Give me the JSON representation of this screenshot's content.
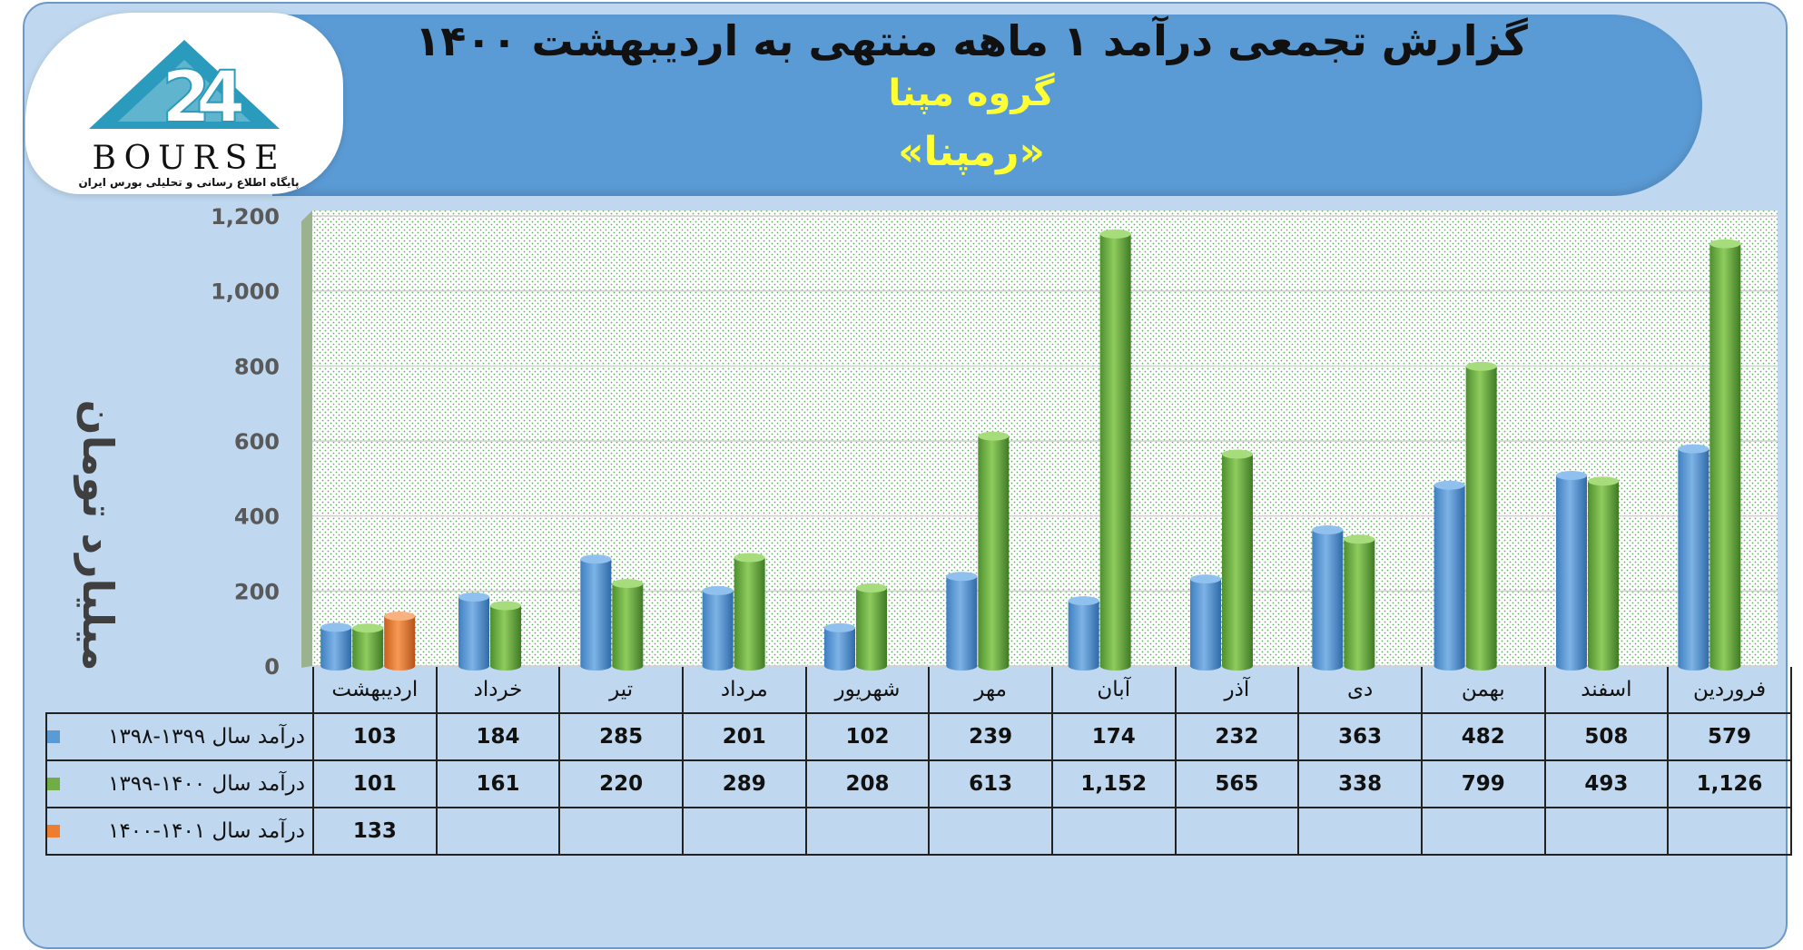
{
  "header": {
    "title": "گزارش تجمعی درآمد ۱ ماهه منتهی به اردیبهشت ۱۴۰۰",
    "subtitle": "گروه مپنا",
    "symbol": "«رمپنا»"
  },
  "logo": {
    "name": "BOURSE",
    "tagline": "پایگاه اطلاع رسانی و تحلیلی بورس ایران",
    "icon": "triangle-24-logo"
  },
  "colors": {
    "series1": "#5b9bd5",
    "series2": "#70ad47",
    "series3": "#ed7d31",
    "title_yellow": "#ffff33",
    "banner": "#5b9bd5",
    "background": "#bfd8ef"
  },
  "chart_data": {
    "type": "bar",
    "ylabel": "میلیارد تومان",
    "ylim": [
      0,
      1200
    ],
    "yticks": [
      "0",
      "200",
      "400",
      "600",
      "800",
      "1,000",
      "1,200"
    ],
    "ytick_values": [
      0,
      200,
      400,
      600,
      800,
      1000,
      1200
    ],
    "grid": true,
    "categories": [
      "اردیبهشت",
      "خرداد",
      "تیر",
      "مرداد",
      "شهریور",
      "مهر",
      "آبان",
      "آذر",
      "دی",
      "بهمن",
      "اسفند",
      "فروردین"
    ],
    "series": [
      {
        "name": "درآمد  سال ۱۳۹۹-۱۳۹۸",
        "values": [
          103,
          184,
          285,
          201,
          102,
          239,
          174,
          232,
          363,
          482,
          508,
          579
        ],
        "labels": [
          "103",
          "184",
          "285",
          "201",
          "102",
          "239",
          "174",
          "232",
          "363",
          "482",
          "508",
          "579"
        ]
      },
      {
        "name": "درآمد  سال ۱۴۰۰-۱۳۹۹",
        "values": [
          101,
          161,
          220,
          289,
          208,
          613,
          1152,
          565,
          338,
          799,
          493,
          1126
        ],
        "labels": [
          "101",
          "161",
          "220",
          "289",
          "208",
          "613",
          "1,152",
          "565",
          "338",
          "799",
          "493",
          "1,126"
        ]
      },
      {
        "name": "درآمد سال ۱۴۰۱-۱۴۰۰",
        "values": [
          133,
          null,
          null,
          null,
          null,
          null,
          null,
          null,
          null,
          null,
          null,
          null
        ],
        "labels": [
          "133",
          "",
          "",
          "",
          "",
          "",
          "",
          "",
          "",
          "",
          "",
          ""
        ]
      }
    ]
  }
}
